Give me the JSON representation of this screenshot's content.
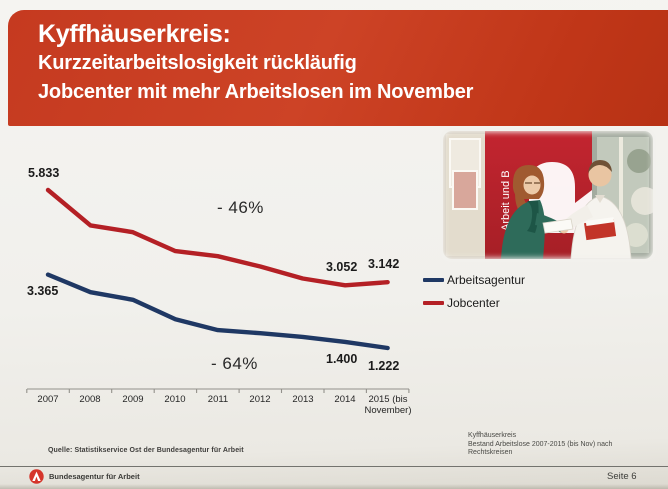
{
  "slide": {
    "header": {
      "title": "Kyffhäuserkreis:",
      "subtitle_line1": "Kurzzeitarbeitslosigkeit rückläufig",
      "subtitle_line2": "Jobcenter mit mehr Arbeitslosen im November"
    },
    "photo": {
      "banner_text": "Arbeit und B"
    },
    "source_note": "Quelle: Statistikservice Ost der Bundesagentur für Arbeit",
    "caption": {
      "line1": "Kyffhäuserkreis",
      "line2": "Bestand Arbeitslose 2007-2015 (bis Nov) nach",
      "line3": "Rechtskreisen"
    },
    "footer": {
      "brand": "Bundesagentur für Arbeit",
      "page": "Seite 6"
    },
    "colors": {
      "header_red": "#c53a20",
      "logo_red": "#d5352b",
      "paper": "#f1f0ec"
    }
  },
  "chart_data": {
    "type": "line",
    "title": "",
    "xlabel": "",
    "ylabel": "",
    "grid": false,
    "legend_position": "right",
    "ylim": [
      1000,
      6200
    ],
    "categories": [
      "2007",
      "2008",
      "2009",
      "2010",
      "2011",
      "2012",
      "2013",
      "2014",
      "2015 (bis November)"
    ],
    "categories_display": [
      "2007",
      "2008",
      "2009",
      "2010",
      "2011",
      "2012",
      "2013",
      "2014",
      "2015 (bis\nNovember)"
    ],
    "series": [
      {
        "name": "Arbeitsagentur",
        "color": "#1f3864",
        "values": [
          3365,
          2850,
          2630,
          2060,
          1745,
          1655,
          1545,
          1400,
          1222
        ]
      },
      {
        "name": "Jobcenter",
        "color": "#b42025",
        "values": [
          5833,
          4800,
          4600,
          4050,
          3900,
          3600,
          3250,
          3052,
          3142
        ]
      }
    ],
    "point_labels": {
      "jobcenter_2007": "5.833",
      "arbeitsagentur_2007": "3.365",
      "jobcenter_2014": "3.052",
      "jobcenter_2015": "3.142",
      "arbeitsagentur_2014": "1.400",
      "arbeitsagentur_2015": "1.222"
    },
    "annotations": [
      {
        "text": "- 46%",
        "series": "Jobcenter"
      },
      {
        "text": "- 64%",
        "series": "Arbeitsagentur"
      }
    ]
  }
}
